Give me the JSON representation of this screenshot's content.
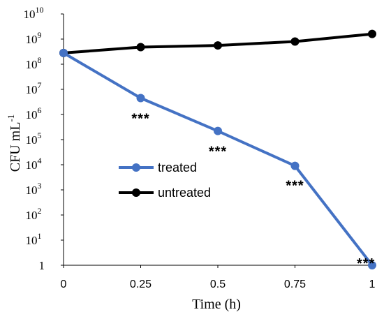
{
  "chart_data": {
    "type": "line",
    "xlabel": "Time (h)",
    "ylabel": {
      "base": "CFU mL",
      "sup": "-1"
    },
    "yscale": "log",
    "ylim": [
      1,
      10000000000
    ],
    "x": [
      0,
      0.25,
      0.5,
      0.75,
      1
    ],
    "x_tick_labels": [
      "0",
      "0.25",
      "0.5",
      "0.75",
      "1"
    ],
    "y_tick_labels": [
      {
        "value": 1,
        "base": "1",
        "sup": ""
      },
      {
        "value": 10,
        "base": "10",
        "sup": "1"
      },
      {
        "value": 100,
        "base": "10",
        "sup": "2"
      },
      {
        "value": 1000,
        "base": "10",
        "sup": "3"
      },
      {
        "value": 10000,
        "base": "10",
        "sup": "4"
      },
      {
        "value": 100000,
        "base": "10",
        "sup": "5"
      },
      {
        "value": 1000000,
        "base": "10",
        "sup": "6"
      },
      {
        "value": 10000000,
        "base": "10",
        "sup": "7"
      },
      {
        "value": 100000000,
        "base": "10",
        "sup": "8"
      },
      {
        "value": 1000000000,
        "base": "10",
        "sup": "9"
      },
      {
        "value": 10000000000,
        "base": "10",
        "sup": "10"
      }
    ],
    "series": [
      {
        "name": "treated",
        "color": "#4472C4",
        "values": [
          280000000,
          4500000,
          220000,
          9000,
          1
        ]
      },
      {
        "name": "untreated",
        "color": "#000000",
        "values": [
          280000000,
          480000000,
          560000000,
          800000000,
          1600000000
        ]
      }
    ],
    "annotations": [
      {
        "text": "***",
        "x": 0.25,
        "y": 700000
      },
      {
        "text": "***",
        "x": 0.5,
        "y": 35000
      },
      {
        "text": "***",
        "x": 0.75,
        "y": 1500
      },
      {
        "text": "***",
        "x": 0.98,
        "y": 1.2
      }
    ],
    "legend": "center-left",
    "grid": false
  }
}
